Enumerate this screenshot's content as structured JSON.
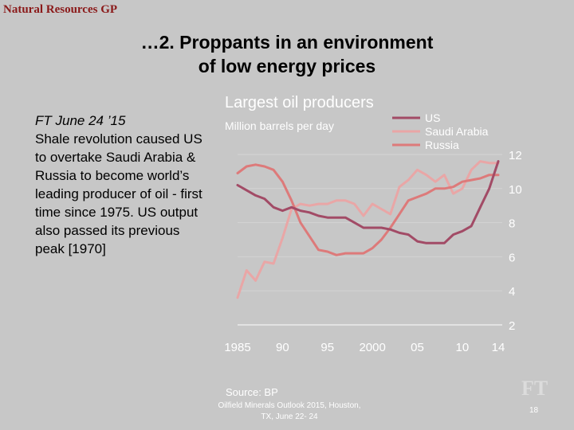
{
  "header": {
    "brand": "Natural Resources GP"
  },
  "slide": {
    "title_line1": "…2. Proppants in an environment",
    "title_line2": "of low energy prices",
    "source_line": "FT June 24 ’15",
    "body": "Shale revolution caused US to overtake Saudi Arabia & Russia to become world’s leading producer of oil - first time since 1975. US output also passed its previous peak [1970]"
  },
  "footer": {
    "conference_line1": "Oilfield Minerals Outlook 2015, Houston,",
    "conference_line2": "TX, June 22- 24",
    "page": "18"
  },
  "chart_data": {
    "type": "line",
    "title": "Largest oil producers",
    "subtitle": "Million barrels per day",
    "source": "Source: BP",
    "watermark": "FT",
    "x_tick_labels": [
      "1985",
      "90",
      "95",
      "2000",
      "05",
      "10",
      "14"
    ],
    "x_ticks": [
      1985,
      1990,
      1995,
      2000,
      2005,
      2010,
      2014
    ],
    "y_ticks": [
      2,
      4,
      6,
      8,
      10,
      12
    ],
    "xlim": [
      1985,
      2014
    ],
    "ylim": [
      2,
      12
    ],
    "legend_position": "top-right",
    "grid": true,
    "series": [
      {
        "name": "US",
        "color": "#a24b66",
        "x": [
          1985,
          1986,
          1987,
          1988,
          1989,
          1990,
          1991,
          1992,
          1993,
          1994,
          1995,
          1996,
          1997,
          1998,
          1999,
          2000,
          2001,
          2002,
          2003,
          2004,
          2005,
          2006,
          2007,
          2008,
          2009,
          2010,
          2011,
          2012,
          2013,
          2014
        ],
        "y": [
          10.2,
          9.9,
          9.6,
          9.4,
          8.9,
          8.7,
          8.9,
          8.7,
          8.6,
          8.4,
          8.3,
          8.3,
          8.3,
          8.0,
          7.7,
          7.7,
          7.7,
          7.6,
          7.4,
          7.3,
          6.9,
          6.8,
          6.8,
          6.8,
          7.3,
          7.5,
          7.8,
          8.9,
          10.0,
          11.6
        ]
      },
      {
        "name": "Saudi Arabia",
        "color": "#e9a6a6",
        "x": [
          1985,
          1986,
          1987,
          1988,
          1989,
          1990,
          1991,
          1992,
          1993,
          1994,
          1995,
          1996,
          1997,
          1998,
          1999,
          2000,
          2001,
          2002,
          2003,
          2004,
          2005,
          2006,
          2007,
          2008,
          2009,
          2010,
          2011,
          2012,
          2013,
          2014
        ],
        "y": [
          3.6,
          5.2,
          4.6,
          5.7,
          5.6,
          7.1,
          8.8,
          9.1,
          9.0,
          9.1,
          9.1,
          9.3,
          9.3,
          9.1,
          8.4,
          9.1,
          8.8,
          8.5,
          10.1,
          10.5,
          11.1,
          10.8,
          10.4,
          10.8,
          9.7,
          10.0,
          11.1,
          11.6,
          11.5,
          11.5
        ]
      },
      {
        "name": "Russia",
        "color": "#dd7a7a",
        "x": [
          1985,
          1986,
          1987,
          1988,
          1989,
          1990,
          1991,
          1992,
          1993,
          1994,
          1995,
          1996,
          1997,
          1998,
          1999,
          2000,
          2001,
          2002,
          2003,
          2004,
          2005,
          2006,
          2007,
          2008,
          2009,
          2010,
          2011,
          2012,
          2013,
          2014
        ],
        "y": [
          10.9,
          11.3,
          11.4,
          11.3,
          11.1,
          10.4,
          9.3,
          8.0,
          7.2,
          6.4,
          6.3,
          6.1,
          6.2,
          6.2,
          6.2,
          6.5,
          7.0,
          7.7,
          8.5,
          9.3,
          9.5,
          9.7,
          10.0,
          10.0,
          10.1,
          10.4,
          10.5,
          10.6,
          10.8,
          10.8
        ]
      }
    ]
  },
  "colors": {
    "background": "#c7c7c7",
    "header_text": "#8b1a1a",
    "chart_text": "#ffffff",
    "gridline": "#d4d4d4"
  }
}
